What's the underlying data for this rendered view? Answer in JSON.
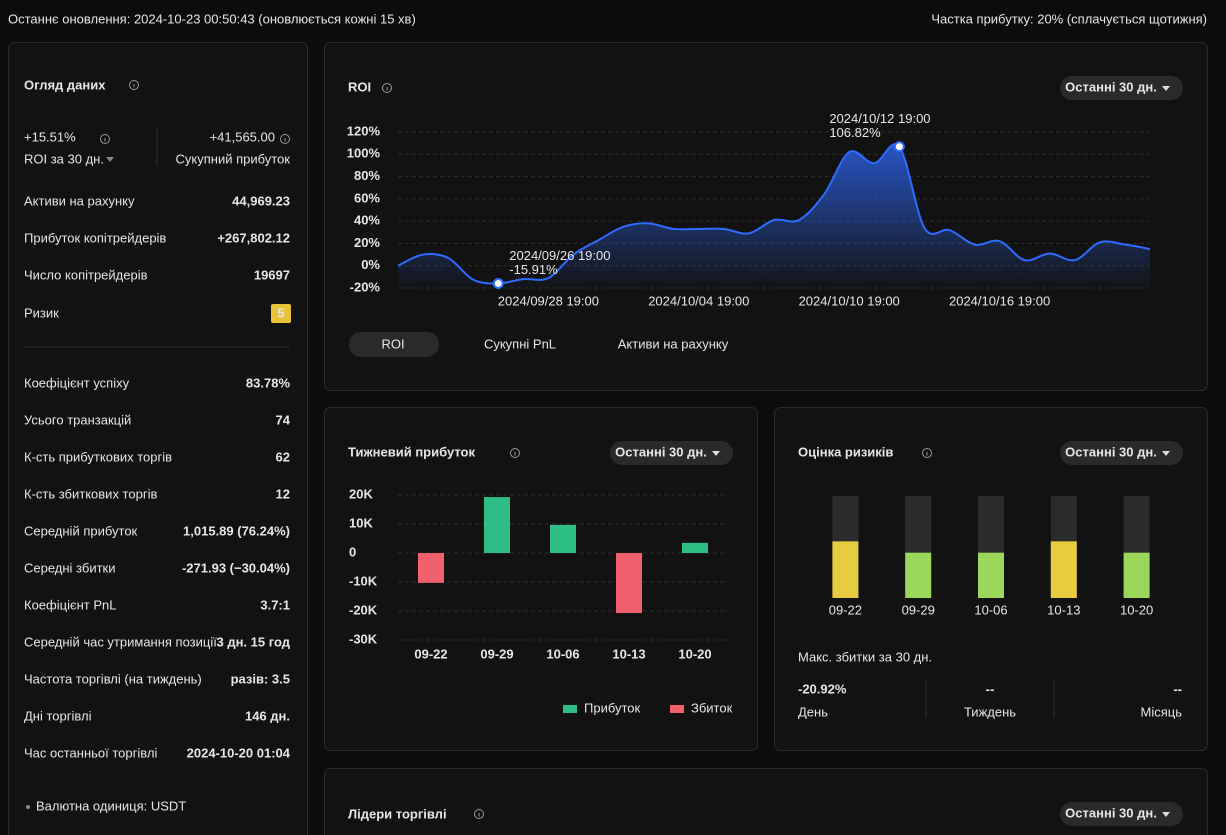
{
  "header": {
    "left": "Останнє оновлення: 2024-10-23 00:50:43 (оновлюється кожні 15 хв)",
    "right": "Частка прибутку: 20% (сплачується щотижня)"
  },
  "overview": {
    "title": "Огляд даних",
    "roi": {
      "value": "+15.51%",
      "label": "ROI за 30 дн."
    },
    "profit": {
      "value": "+41,565.00",
      "label": "Сукупний прибуток"
    },
    "rows1": [
      {
        "label": "Активи на рахунку",
        "value": "44,969.23"
      },
      {
        "label": "Прибуток копітрейдерів",
        "value": "+267,802.12"
      },
      {
        "label": "Число копітрейдерів",
        "value": "19697"
      }
    ],
    "risk": {
      "label": "Ризик",
      "value": "5"
    },
    "rows2": [
      {
        "label": "Коефіцієнт успіху",
        "value": "83.78%"
      },
      {
        "label": "Усього транзакцій",
        "value": "74"
      },
      {
        "label": "К-сть прибуткових торгів",
        "value": "62"
      },
      {
        "label": "К-сть збиткових торгів",
        "value": "12"
      },
      {
        "label": "Середній прибуток",
        "value": "1,015.89 (76.24%)"
      },
      {
        "label": "Середні збитки",
        "value": "-271.93 (−30.04%)"
      },
      {
        "label": "Коефіцієнт PnL",
        "value": "3.7:1"
      },
      {
        "label": "Середній час утримання позиції",
        "value": "3 дн. 15 год"
      },
      {
        "label": "Частота торгівлі (на тиждень)",
        "value": "разів: 3.5"
      },
      {
        "label": "Дні торгівлі",
        "value": "146 дн."
      },
      {
        "label": "Час останньої торгівлі",
        "value": "2024-10-20 01:04"
      }
    ],
    "footer": "Валютна одиниця: USDT"
  },
  "chart_data": [
    {
      "type": "line",
      "title": "ROI",
      "dropdown": "Останні 30 дн.",
      "x": [
        "2024/09/22 19:00",
        "2024/09/23 19:00",
        "2024/09/24 19:00",
        "2024/09/25 19:00",
        "2024/09/26 19:00",
        "2024/09/27 19:00",
        "2024/09/28 19:00",
        "2024/09/29 19:00",
        "2024/09/30 19:00",
        "2024/10/01 19:00",
        "2024/10/02 19:00",
        "2024/10/03 19:00",
        "2024/10/04 19:00",
        "2024/10/05 19:00",
        "2024/10/06 19:00",
        "2024/10/07 19:00",
        "2024/10/08 19:00",
        "2024/10/09 19:00",
        "2024/10/10 19:00",
        "2024/10/11 19:00",
        "2024/10/12 19:00",
        "2024/10/13 19:00",
        "2024/10/14 19:00",
        "2024/10/15 19:00",
        "2024/10/16 19:00",
        "2024/10/17 19:00",
        "2024/10/18 19:00",
        "2024/10/19 19:00",
        "2024/10/20 19:00",
        "2024/10/21 19:00",
        "2024/10/22 19:00"
      ],
      "xticks": [
        "2024/09/28 19:00",
        "2024/10/04 19:00",
        "2024/10/10 19:00",
        "2024/10/16 19:00"
      ],
      "ylim": [
        -20,
        120
      ],
      "yticks": [
        {
          "value": -20,
          "label": "-20%"
        },
        {
          "value": 0,
          "label": "0%"
        },
        {
          "value": 20,
          "label": "20%"
        },
        {
          "value": 40,
          "label": "40%"
        },
        {
          "value": 60,
          "label": "60%"
        },
        {
          "value": 80,
          "label": "80%"
        },
        {
          "value": 100,
          "label": "100%"
        },
        {
          "value": 120,
          "label": "120%"
        }
      ],
      "grid": true,
      "series": [
        {
          "color": "#2f6bff",
          "values": [
            0,
            10,
            7,
            -12.5,
            -15.91,
            -12,
            -11,
            10,
            23,
            35,
            38,
            33,
            33,
            33,
            29,
            41,
            41,
            64,
            102,
            92,
            106.82,
            34,
            32,
            19,
            22,
            5,
            11,
            5,
            21,
            19,
            15
          ]
        }
      ],
      "annotations": [
        {
          "x": "2024/09/26 19:00",
          "text": "-15.91%"
        },
        {
          "x": "2024/10/12 19:00",
          "text": "106.82%"
        }
      ],
      "tabs": [
        "ROI",
        "Сукупні PnL",
        "Активи на рахунку"
      ]
    },
    {
      "type": "bar",
      "title": "Тижневий прибуток",
      "dropdown": "Останні 30 дн.",
      "categories": [
        "09-22",
        "09-29",
        "10-06",
        "10-13",
        "10-20"
      ],
      "ylim": [
        -30000,
        20000
      ],
      "yticks": [
        {
          "value": -30000,
          "label": "-30K"
        },
        {
          "value": -20000,
          "label": "-20K"
        },
        {
          "value": -10000,
          "label": "-10K"
        },
        {
          "value": 0,
          "label": "0"
        },
        {
          "value": 10000,
          "label": "10K"
        },
        {
          "value": 20000,
          "label": "20K"
        }
      ],
      "grid": true,
      "series": [
        {
          "name": "Прибуток",
          "color": "#2ebd85",
          "values": [
            null,
            19300,
            9700,
            null,
            3500
          ]
        },
        {
          "name": "Збиток",
          "color": "#f0606d",
          "values": [
            -10300,
            null,
            null,
            -20700,
            null
          ]
        }
      ]
    },
    {
      "type": "bar",
      "title": "Оцінка ризиків",
      "dropdown": "Останні 30 дн.",
      "categories": [
        "09-22",
        "09-29",
        "10-06",
        "10-13",
        "10-20"
      ],
      "values": [
        5,
        4,
        4,
        5,
        4
      ],
      "colors": [
        "#e8cc3f",
        "#9bd75a",
        "#9bd75a",
        "#e8cc3f",
        "#9bd75a"
      ],
      "ylim": [
        0,
        9
      ],
      "track_color": "#2b2b2b"
    }
  ],
  "risk_summary": {
    "title": "Макс. збитки за 30 дн.",
    "items": [
      {
        "value": "-20.92%",
        "label": "День"
      },
      {
        "value": "--",
        "label": "Тиждень"
      },
      {
        "value": "--",
        "label": "Місяць"
      }
    ]
  },
  "leaders": {
    "title": "Лідери торгівлі",
    "dropdown": "Останні 30 дн."
  }
}
